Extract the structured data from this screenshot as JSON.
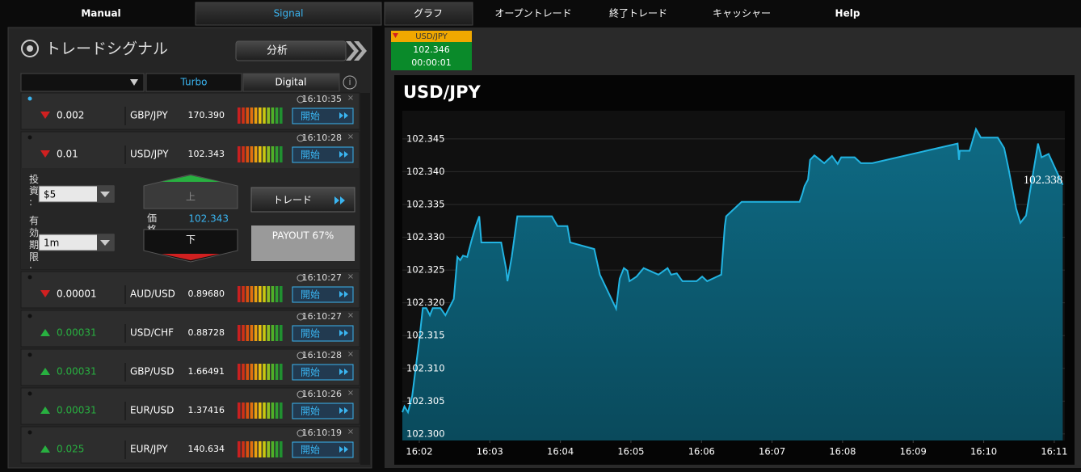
{
  "top_tabs_left": [
    "Manual",
    "Signal"
  ],
  "top_tabs_right": [
    "グラフ",
    "オープントレード",
    "終了トレード",
    "キャッシャー",
    "Help"
  ],
  "signals_panel": {
    "title": "トレードシグナル",
    "analyze_button": "分析",
    "filter_tabs": [
      "Turbo",
      "Digital"
    ],
    "rows": [
      {
        "time": "16:10:35",
        "direction": "down",
        "change": "0.002",
        "pair": "GBP/JPY",
        "price": "170.390",
        "button": "開始"
      },
      {
        "time": "16:10:28",
        "direction": "down",
        "change": "0.01",
        "pair": "USD/JPY",
        "price": "102.343",
        "button": "開始",
        "trade_form": {
          "investment_label": "投資:",
          "investment": "$5",
          "expiry_label": "有効期限:",
          "expiry": "1m",
          "up_button": "上",
          "down_button": "下",
          "price_label": "価格",
          "price": "102.343",
          "trade_button": "トレード",
          "payout": "PAYOUT 67%"
        }
      },
      {
        "time": "16:10:27",
        "direction": "down",
        "change": "0.00001",
        "pair": "AUD/USD",
        "price": "0.89680",
        "button": "開始"
      },
      {
        "time": "16:10:27",
        "direction": "up",
        "change": "0.00031",
        "pair": "USD/CHF",
        "price": "0.88728",
        "button": "開始"
      },
      {
        "time": "16:10:28",
        "direction": "up",
        "change": "0.00031",
        "pair": "GBP/USD",
        "price": "1.66491",
        "button": "開始"
      },
      {
        "time": "16:10:26",
        "direction": "up",
        "change": "0.00031",
        "pair": "EUR/USD",
        "price": "1.37416",
        "button": "開始"
      },
      {
        "time": "16:10:19",
        "direction": "up",
        "change": "0.025",
        "pair": "EUR/JPY",
        "price": "140.634",
        "button": "開始"
      }
    ]
  },
  "ticker": {
    "pair": "USD/JPY",
    "price": "102.346",
    "countdown": "00:00:01"
  },
  "chart_data": {
    "type": "area",
    "title": "USD/JPY",
    "color": "#22b4e2",
    "fill": "#0b5b72",
    "grid": true,
    "x": [
      961.76,
      961.79,
      961.84,
      961.9,
      962.0,
      962.05,
      962.1,
      962.15,
      962.19,
      962.3,
      962.37,
      962.49,
      962.54,
      962.58,
      962.62,
      962.68,
      962.74,
      962.8,
      962.85,
      962.88,
      963.16,
      963.23,
      963.25,
      963.31,
      963.39,
      963.88,
      963.96,
      964.1,
      964.14,
      964.48,
      964.56,
      964.79,
      964.84,
      964.9,
      964.95,
      964.98,
      965.08,
      965.18,
      965.39,
      965.52,
      965.57,
      965.65,
      965.73,
      965.93,
      966.01,
      966.08,
      966.28,
      966.33,
      966.35,
      966.57,
      967.39,
      967.43,
      967.46,
      967.51,
      967.54,
      967.6,
      967.68,
      967.74,
      967.85,
      967.93,
      967.98,
      968.17,
      968.26,
      968.42,
      969.63,
      969.65,
      969.66,
      969.8,
      969.89,
      969.96,
      970.2,
      970.29,
      970.35,
      970.46,
      970.52,
      970.6,
      970.66,
      970.77,
      970.82,
      970.92,
      971.12
    ],
    "values": [
      102.3033,
      102.3042,
      102.3033,
      102.3058,
      102.3144,
      102.3192,
      102.3192,
      102.3181,
      102.3192,
      102.3192,
      102.3181,
      102.3206,
      102.327,
      102.3265,
      102.3272,
      102.327,
      102.3295,
      102.3317,
      102.3332,
      102.3292,
      102.3292,
      102.3252,
      102.3233,
      102.327,
      102.3332,
      102.3332,
      102.3317,
      102.3317,
      102.3292,
      102.3282,
      102.3243,
      102.3191,
      102.3237,
      102.3253,
      102.3249,
      102.3233,
      102.324,
      102.3253,
      102.3243,
      102.3253,
      102.3243,
      102.3245,
      102.3233,
      102.3233,
      102.324,
      102.3233,
      102.3243,
      102.3317,
      102.3332,
      102.3354,
      102.3354,
      102.3366,
      102.3378,
      102.3388,
      102.3418,
      102.3425,
      102.3418,
      102.3413,
      102.3424,
      102.3412,
      102.3422,
      102.3422,
      102.3413,
      102.3413,
      102.3443,
      102.3418,
      102.3432,
      102.3432,
      102.3465,
      102.3452,
      102.3452,
      102.3436,
      102.3406,
      102.3344,
      102.3322,
      102.3333,
      102.3372,
      102.3443,
      102.3422,
      102.3427,
      102.338
    ],
    "current_price": 102.338,
    "xlim": [
      961.76,
      971.15
    ],
    "xticks": [
      {
        "value": 962,
        "label": "16:02"
      },
      {
        "value": 963,
        "label": "16:03"
      },
      {
        "value": 964,
        "label": "16:04"
      },
      {
        "value": 965,
        "label": "16:05"
      },
      {
        "value": 966,
        "label": "16:06"
      },
      {
        "value": 967,
        "label": "16:07"
      },
      {
        "value": 968,
        "label": "16:08"
      },
      {
        "value": 969,
        "label": "16:09"
      },
      {
        "value": 970,
        "label": "16:10"
      },
      {
        "value": 971,
        "label": "16:11"
      }
    ],
    "ylim": [
      102.299,
      102.3493
    ],
    "yticks": [
      {
        "value": 102.3,
        "label": "102.300"
      },
      102.305,
      {
        "value": 102.31,
        "label": "102.310"
      },
      102.315,
      {
        "value": 102.32,
        "label": "102.320"
      },
      102.325,
      {
        "value": 102.33,
        "label": "102.330"
      },
      102.335,
      {
        "value": 102.34,
        "label": "102.340"
      },
      102.345
    ]
  }
}
